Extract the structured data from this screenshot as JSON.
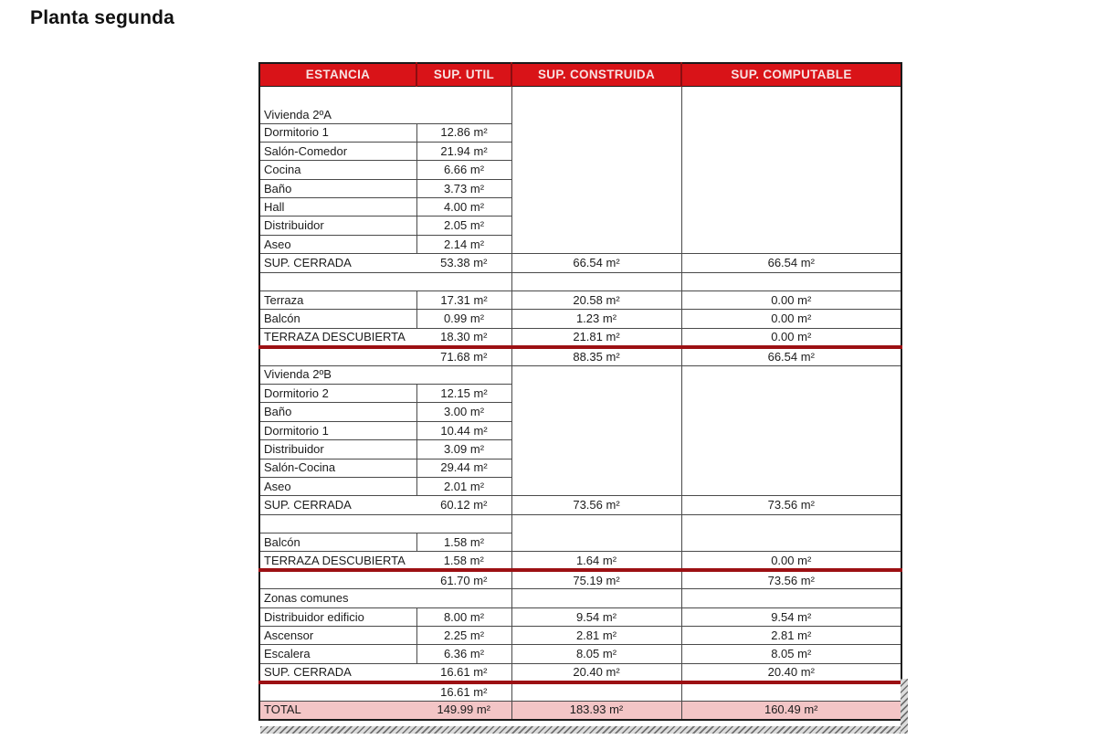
{
  "page": {
    "title": "Planta segunda"
  },
  "colors": {
    "header_bg": "#D91318",
    "header_separator": "#8C0E11",
    "header_text": "#F7E2E2",
    "total_row_bg": "#F3C5C6",
    "red_underline": "#9C1013",
    "grid_line": "#4A4A4A",
    "text": "#1C1C1C"
  },
  "table": {
    "headers": [
      "ESTANCIA",
      "SUP. UTIL",
      "SUP. CONSTRUIDA",
      "SUP. COMPUTABLE"
    ],
    "rows": [
      {
        "style": "section",
        "label": "Vivienda 2ºA",
        "tall": true,
        "span34": 8
      },
      {
        "style": "item",
        "label": "Dormitorio 1",
        "util": "12.86 m²",
        "span34": 0
      },
      {
        "style": "item",
        "label": "Salón-Comedor",
        "util": "21.94 m²",
        "span34": 0
      },
      {
        "style": "item",
        "label": "Cocina",
        "util": "6.66 m²",
        "span34": 0
      },
      {
        "style": "item",
        "label": "Baño",
        "util": "3.73 m²",
        "span34": 0
      },
      {
        "style": "item",
        "label": "Hall",
        "util": "4.00 m²",
        "span34": 0
      },
      {
        "style": "item",
        "label": "Distribuidor",
        "util": "2.05 m²",
        "span34": 0
      },
      {
        "style": "item",
        "label": "Aseo",
        "util": "2.14 m²",
        "span34": 0
      },
      {
        "style": "summary",
        "label": "SUP. CERRADA",
        "util": "53.38 m²",
        "cons": "66.54 m²",
        "comp": "66.54 m²"
      },
      {
        "style": "empty",
        "label": "",
        "util": ""
      },
      {
        "style": "item",
        "label": "Terraza",
        "util": "17.31 m²",
        "cons": "20.58 m²",
        "comp": "0.00 m²"
      },
      {
        "style": "item",
        "label": "Balcón",
        "util": "0.99 m²",
        "cons": "1.23 m²",
        "comp": "0.00 m²"
      },
      {
        "style": "summary",
        "label": "TERRAZA DESCUBIERTA",
        "util": "18.30 m²",
        "cons": "21.81 m²",
        "comp": "0.00 m²",
        "redline": true
      },
      {
        "style": "summary",
        "label": "",
        "util": "71.68 m²",
        "cons": "88.35 m²",
        "comp": "66.54 m²"
      },
      {
        "style": "section",
        "label": "Vivienda 2ºB",
        "span34": 7
      },
      {
        "style": "item",
        "label": "Dormitorio 2",
        "util": "12.15 m²",
        "span34": 0
      },
      {
        "style": "item",
        "label": "Baño",
        "util": "3.00 m²",
        "span34": 0
      },
      {
        "style": "item",
        "label": "Dormitorio 1",
        "util": "10.44 m²",
        "span34": 0
      },
      {
        "style": "item",
        "label": "Distribuidor",
        "util": "3.09 m²",
        "span34": 0
      },
      {
        "style": "item",
        "label": "Salón-Cocina",
        "util": "29.44 m²",
        "span34": 0
      },
      {
        "style": "item",
        "label": "Aseo",
        "util": "2.01 m²",
        "span34": 0
      },
      {
        "style": "summary",
        "label": "SUP. CERRADA",
        "util": "60.12 m²",
        "cons": "73.56 m²",
        "comp": "73.56 m²"
      },
      {
        "style": "empty",
        "label": "",
        "util": "",
        "span34": 2
      },
      {
        "style": "item",
        "label": "Balcón",
        "util": "1.58 m²",
        "span34": 0
      },
      {
        "style": "summary",
        "label": "TERRAZA DESCUBIERTA",
        "util": "1.58 m²",
        "cons": "1.64 m²",
        "comp": "0.00 m²",
        "redline": true
      },
      {
        "style": "summary",
        "label": "",
        "util": "61.70 m²",
        "cons": "75.19 m²",
        "comp": "73.56 m²"
      },
      {
        "style": "section",
        "label": "Zonas comunes"
      },
      {
        "style": "item",
        "label": "Distribuidor edificio",
        "util": "8.00 m²",
        "cons": "9.54 m²",
        "comp": "9.54 m²"
      },
      {
        "style": "item",
        "label": "Ascensor",
        "util": "2.25 m²",
        "cons": "2.81 m²",
        "comp": "2.81 m²"
      },
      {
        "style": "item",
        "label": "Escalera",
        "util": "6.36 m²",
        "cons": "8.05 m²",
        "comp": "8.05 m²"
      },
      {
        "style": "summary",
        "label": "SUP. CERRADA",
        "util": "16.61 m²",
        "cons": "20.40 m²",
        "comp": "20.40 m²",
        "redline": true
      },
      {
        "style": "summary",
        "label": "",
        "util": "16.61 m²",
        "cons": "",
        "comp": ""
      },
      {
        "style": "total",
        "label": "TOTAL",
        "util": "149.99 m²",
        "cons": "183.93 m²",
        "comp": "160.49 m²"
      }
    ]
  }
}
